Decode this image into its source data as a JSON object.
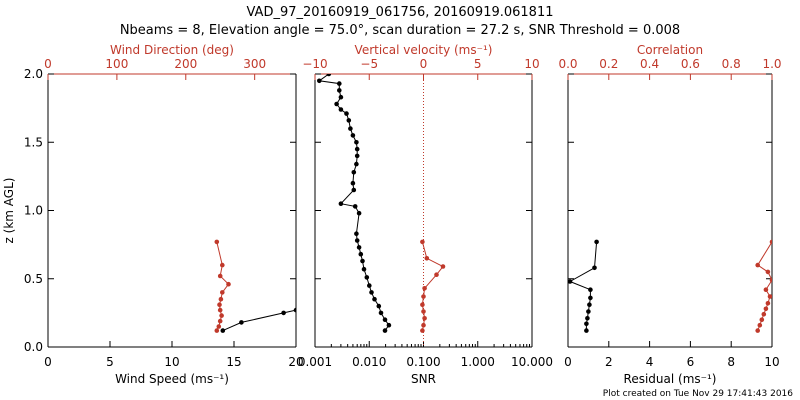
{
  "title_line1": "VAD_97_20160919_061756, 20160919.061811",
  "title_line2": "Nbeams = 8, Elevation angle = 75.0°, scan duration = 27.2 s, SNR Threshold = 0.008",
  "footer": "Plot created on Tue Nov 29 17:41:43 2016",
  "colors": {
    "primary": "#000000",
    "secondary": "#c0392b"
  },
  "chart_data": [
    {
      "type": "line",
      "panel": "left",
      "ylabel": "z (km AGL)",
      "ylim": [
        0,
        2
      ],
      "yticks": [
        "0.0",
        "0.5",
        "1.0",
        "1.5",
        "2.0"
      ],
      "xlabel_bottom": "Wind Speed (ms⁻¹)",
      "xlim_bottom": [
        0,
        20
      ],
      "xticks_bottom": [
        "0",
        "5",
        "10",
        "15",
        "20"
      ],
      "xlabel_top": "Wind Direction (deg)",
      "xlim_top": [
        0,
        360
      ],
      "xticks_top": [
        "0",
        "100",
        "200",
        "300"
      ],
      "series": [
        {
          "axis": "bottom",
          "color": "primary",
          "x": [
            14.1,
            15.6,
            19.0,
            20.0
          ],
          "y": [
            0.12,
            0.18,
            0.25,
            0.27
          ]
        },
        {
          "axis": "top",
          "color": "secondary",
          "x": [
            245,
            248,
            250,
            252,
            250,
            249,
            251,
            253,
            262,
            250,
            253,
            245
          ],
          "y": [
            0.12,
            0.15,
            0.19,
            0.23,
            0.27,
            0.31,
            0.35,
            0.4,
            0.46,
            0.52,
            0.6,
            0.77
          ]
        }
      ]
    },
    {
      "type": "line",
      "panel": "middle",
      "xscale_bottom": "log",
      "xlabel_bottom": "SNR",
      "xlim_bottom": [
        0.001,
        10
      ],
      "xticks_bottom": [
        "0.001",
        "0.010",
        "0.100",
        "1.000",
        "10.000"
      ],
      "xlabel_top": "Vertical velocity (ms⁻¹)",
      "xlim_top": [
        -10,
        10
      ],
      "xticks_top": [
        "−10",
        "−5",
        "0",
        "5",
        "10"
      ],
      "zero_line_top": 0,
      "series": [
        {
          "axis": "bottom",
          "color": "primary",
          "x": [
            0.0195,
            0.023,
            0.0195,
            0.0165,
            0.015,
            0.0125,
            0.011,
            0.01,
            0.009,
            0.008,
            0.0075,
            0.007,
            0.0065,
            0.006,
            0.0058,
            0.0065,
            0.0055,
            0.003,
            0.0052,
            0.005,
            0.0052,
            0.0058,
            0.006,
            0.006,
            0.0058,
            0.005,
            0.0045,
            0.0042,
            0.0038,
            0.003,
            0.0025,
            0.003,
            0.0028,
            0.0028,
            0.0012,
            0.0018
          ],
          "y": [
            0.12,
            0.16,
            0.2,
            0.25,
            0.3,
            0.35,
            0.4,
            0.45,
            0.51,
            0.57,
            0.63,
            0.68,
            0.73,
            0.78,
            0.83,
            0.98,
            1.03,
            1.05,
            1.15,
            1.2,
            1.28,
            1.34,
            1.4,
            1.45,
            1.5,
            1.55,
            1.6,
            1.66,
            1.71,
            1.74,
            1.78,
            1.83,
            1.88,
            1.93,
            1.95,
            2.0
          ]
        },
        {
          "axis": "top",
          "color": "secondary",
          "x": [
            -0.1,
            0.0,
            0.1,
            0.0,
            -0.1,
            0.0,
            0.1,
            1.2,
            1.8,
            0.3,
            -0.1
          ],
          "y": [
            0.12,
            0.16,
            0.21,
            0.26,
            0.31,
            0.37,
            0.43,
            0.53,
            0.59,
            0.65,
            0.77
          ]
        }
      ]
    },
    {
      "type": "line",
      "panel": "right",
      "xlabel_bottom": "Residual (ms⁻¹)",
      "xlim_bottom": [
        0,
        10
      ],
      "xticks_bottom": [
        "0",
        "2",
        "4",
        "6",
        "8",
        "10"
      ],
      "xlabel_top": "Correlation",
      "xlim_top": [
        0,
        1
      ],
      "xticks_top": [
        "0.0",
        "0.2",
        "0.4",
        "0.6",
        "0.8",
        "1.0"
      ],
      "series": [
        {
          "axis": "bottom",
          "color": "primary",
          "x": [
            0.9,
            0.9,
            0.95,
            1.0,
            1.05,
            1.1,
            1.1,
            0.1,
            1.3,
            1.4
          ],
          "y": [
            0.12,
            0.17,
            0.21,
            0.26,
            0.31,
            0.36,
            0.42,
            0.48,
            0.58,
            0.77
          ]
        },
        {
          "axis": "top",
          "color": "secondary",
          "x": [
            0.93,
            0.94,
            0.95,
            0.96,
            0.97,
            0.98,
            0.99,
            0.97,
            1.0,
            0.98,
            0.93,
            1.0
          ],
          "y": [
            0.12,
            0.16,
            0.2,
            0.24,
            0.28,
            0.32,
            0.37,
            0.42,
            0.49,
            0.55,
            0.6,
            0.77
          ]
        }
      ]
    }
  ]
}
